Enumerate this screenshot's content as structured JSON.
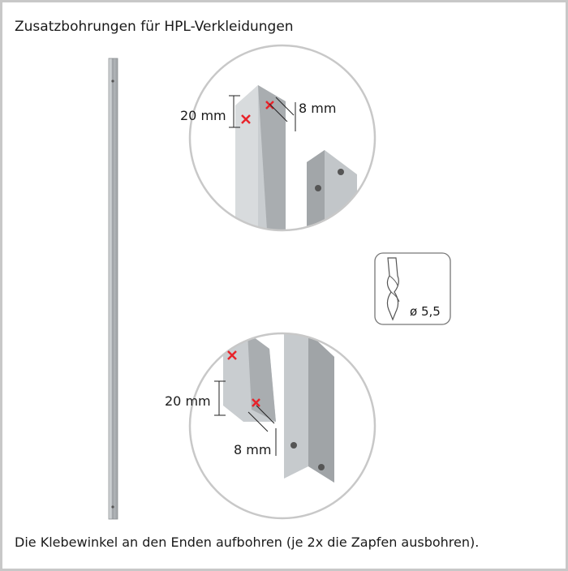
{
  "title": "Zusatzbohrungen für HPL-Verkleidungen",
  "top_detail": {
    "vertical_label": "20 mm",
    "diagonal_label": "8 mm"
  },
  "drill": {
    "label": "ø 5,5"
  },
  "bottom_detail": {
    "vertical_label": "20 mm",
    "diagonal_label": "8 mm"
  },
  "caption": "Die Klebewinkel an den Enden aufbohren (je 2x die Zapfen ausbohren)."
}
